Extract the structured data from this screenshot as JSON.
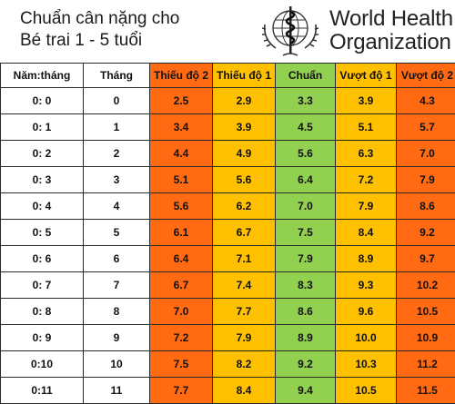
{
  "header": {
    "title_line1": "Chuẩn cân nặng cho",
    "title_line2": "Bé trai 1 - 5 tuổi",
    "org_line1": "World Health",
    "org_line2": "Organization",
    "logo_icon": "who-emblem-icon"
  },
  "colors": {
    "severe": "#ff6a13",
    "moderate": "#ffc000",
    "normal": "#92d050"
  },
  "table": {
    "headers": [
      "Năm:tháng",
      "Tháng",
      "Thiếu độ 2",
      "Thiếu độ 1",
      "Chuẩn",
      "Vượt độ 1",
      "Vượt độ 2"
    ],
    "rows": [
      [
        "0:  0",
        "0",
        "2.5",
        "2.9",
        "3.3",
        "3.9",
        "4.3"
      ],
      [
        "0:  1",
        "1",
        "3.4",
        "3.9",
        "4.5",
        "5.1",
        "5.7"
      ],
      [
        "0:  2",
        "2",
        "4.4",
        "4.9",
        "5.6",
        "6.3",
        "7.0"
      ],
      [
        "0:  3",
        "3",
        "5.1",
        "5.6",
        "6.4",
        "7.2",
        "7.9"
      ],
      [
        "0:  4",
        "4",
        "5.6",
        "6.2",
        "7.0",
        "7.9",
        "8.6"
      ],
      [
        "0:  5",
        "5",
        "6.1",
        "6.7",
        "7.5",
        "8.4",
        "9.2"
      ],
      [
        "0:  6",
        "6",
        "6.4",
        "7.1",
        "7.9",
        "8.9",
        "9.7"
      ],
      [
        "0:  7",
        "7",
        "6.7",
        "7.4",
        "8.3",
        "9.3",
        "10.2"
      ],
      [
        "0:  8",
        "8",
        "7.0",
        "7.7",
        "8.6",
        "9.6",
        "10.5"
      ],
      [
        "0:  9",
        "9",
        "7.2",
        "7.9",
        "8.9",
        "10.0",
        "10.9"
      ],
      [
        "0:10",
        "10",
        "7.5",
        "8.2",
        "9.2",
        "10.3",
        "11.2"
      ],
      [
        "0:11",
        "11",
        "7.7",
        "8.4",
        "9.4",
        "10.5",
        "11.5"
      ]
    ]
  }
}
